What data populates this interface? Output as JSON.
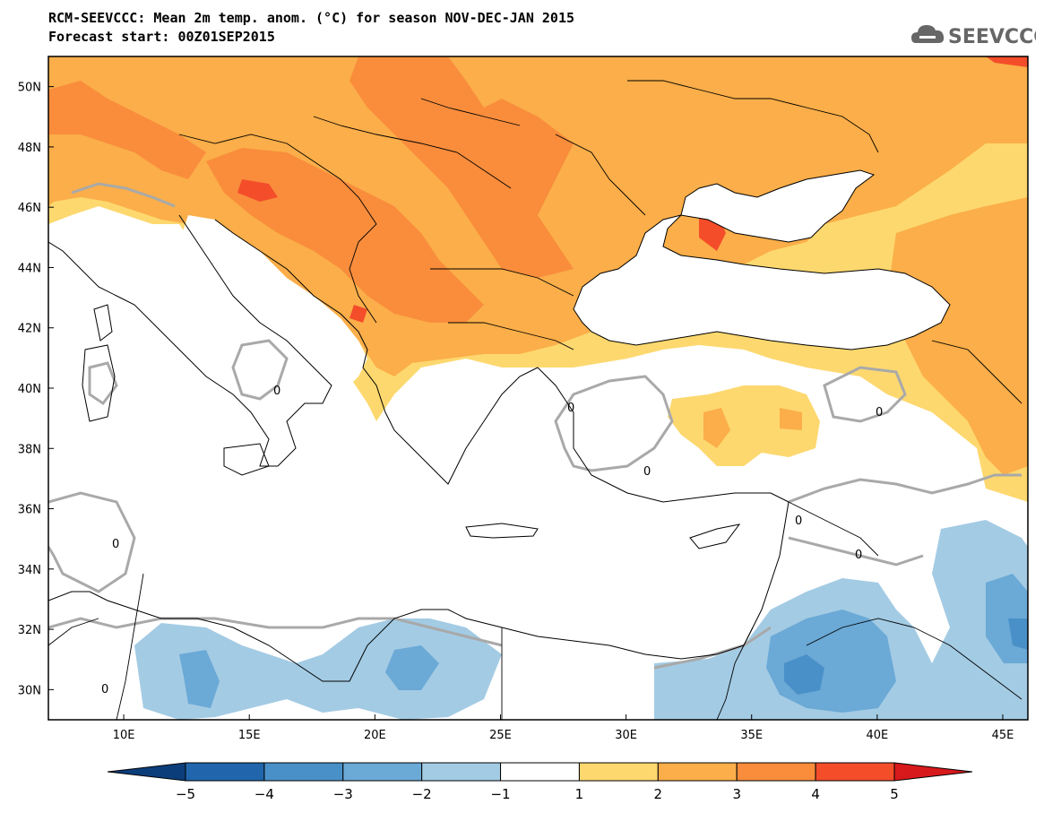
{
  "header": {
    "title": "RCM-SEEVCCC: Mean 2m temp. anom. (°C) for season NOV-DEC-JAN 2015",
    "subtitle": "Forecast start: 00Z01SEP2015",
    "logo_text": "SEEVCCC",
    "logo_icon": "cloud-icon"
  },
  "map": {
    "lon_range": [
      7,
      46
    ],
    "lat_range": [
      29,
      51
    ],
    "x_ticks": [
      "10E",
      "15E",
      "20E",
      "25E",
      "30E",
      "35E",
      "40E",
      "45E"
    ],
    "y_ticks": [
      "30N",
      "32N",
      "34N",
      "36N",
      "38N",
      "40N",
      "42N",
      "44N",
      "46N",
      "48N",
      "50N"
    ],
    "contour_label": "0",
    "colors": {
      "land": "#ffffff",
      "sea": "#ffffff",
      "borders": "#000000",
      "zero_contour": "#a9a9a9"
    }
  },
  "colorbar": {
    "tick_labels": [
      "−5",
      "−4",
      "−3",
      "−2",
      "−1",
      "1",
      "2",
      "3",
      "4",
      "5"
    ],
    "bins": [
      {
        "range": "<-5",
        "color": "#0b3d7a"
      },
      {
        "range": "-5 to -4",
        "color": "#2166ac"
      },
      {
        "range": "-4 to -3",
        "color": "#4a90c8"
      },
      {
        "range": "-3 to -2",
        "color": "#6ba9d6"
      },
      {
        "range": "-2 to -1",
        "color": "#a3cbe4"
      },
      {
        "range": "-1 to 1",
        "color": "#ffffff"
      },
      {
        "range": "1 to 2",
        "color": "#fdd86f"
      },
      {
        "range": "2 to 3",
        "color": "#fbae49"
      },
      {
        "range": "3 to 4",
        "color": "#f98d3c"
      },
      {
        "range": "4 to 5",
        "color": "#f44d2a"
      },
      {
        "range": ">5",
        "color": "#d7191c"
      }
    ]
  }
}
